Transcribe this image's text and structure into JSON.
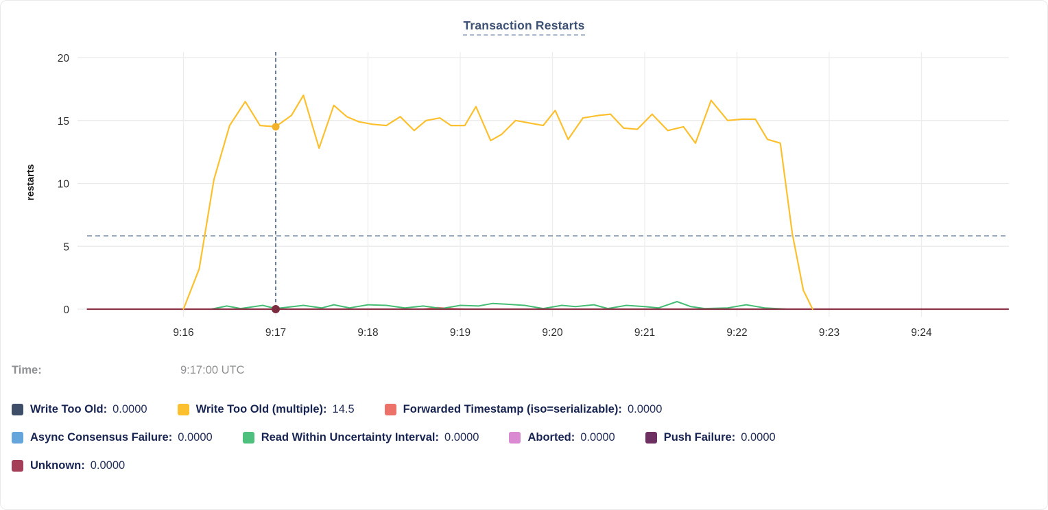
{
  "title": {
    "text": "Transaction Restarts"
  },
  "tooltip": {
    "time_label": "Time:",
    "time_value": "9:17:00 UTC"
  },
  "legend": {
    "rows": [
      [
        {
          "label": "Write Too Old:",
          "value": "0.0000",
          "color": "#3f4e68"
        },
        {
          "label": "Write Too Old (multiple):",
          "value": "14.5",
          "color": "#fcc02e"
        },
        {
          "label": "Forwarded Timestamp (iso=serializable):",
          "value": "0.0000",
          "color": "#ec7168"
        }
      ],
      [
        {
          "label": "Async Consensus Failure:",
          "value": "0.0000",
          "color": "#64a5dc"
        },
        {
          "label": "Read Within Uncertainty Interval:",
          "value": "0.0000",
          "color": "#4ec07d"
        },
        {
          "label": "Aborted:",
          "value": "0.0000",
          "color": "#d98ad1"
        },
        {
          "label": "Push Failure:",
          "value": "0.0000",
          "color": "#6e3060"
        }
      ],
      [
        {
          "label": "Unknown:",
          "value": "0.0000",
          "color": "#a43d57"
        }
      ]
    ]
  },
  "chart_data": {
    "type": "line",
    "title": "Transaction Restarts",
    "xlabel": "",
    "ylabel": "restarts",
    "ylim": [
      0,
      20
    ],
    "yticks": [
      0,
      5,
      10,
      15,
      20
    ],
    "xticks": [
      {
        "t": 16,
        "label": "9:16"
      },
      {
        "t": 17,
        "label": "9:17"
      },
      {
        "t": 18,
        "label": "9:18"
      },
      {
        "t": 19,
        "label": "9:19"
      },
      {
        "t": 20,
        "label": "9:20"
      },
      {
        "t": 21,
        "label": "9:21"
      },
      {
        "t": 22,
        "label": "9:22"
      },
      {
        "t": 23,
        "label": "9:23"
      },
      {
        "t": 24,
        "label": "9:24"
      }
    ],
    "x_domain_minutes_after_9": [
      14.96,
      24.94
    ],
    "grid": true,
    "legend_position": "bottom",
    "threshold_dashed_line_value": 5.83,
    "crosshair": {
      "t": 17,
      "time": "9:17:00 UTC",
      "dots": [
        {
          "series": "Write Too Old (multiple)",
          "value": 14.5,
          "color": "#f2b32a",
          "r": 5.5
        },
        {
          "series": "Unknown",
          "value": 0,
          "color": "#7d2c40",
          "r": 6
        }
      ]
    },
    "series": [
      {
        "name": "Write Too Old",
        "color": "#3f4e68",
        "width": 2,
        "points": [
          [
            14.96,
            0
          ],
          [
            24.94,
            0
          ]
        ]
      },
      {
        "name": "Async Consensus Failure",
        "color": "#64a5dc",
        "width": 2,
        "points": [
          [
            14.96,
            0
          ],
          [
            24.94,
            0
          ]
        ]
      },
      {
        "name": "Aborted",
        "color": "#d98ad1",
        "width": 2,
        "points": [
          [
            14.96,
            0
          ],
          [
            24.94,
            0
          ]
        ]
      },
      {
        "name": "Push Failure",
        "color": "#6e3060",
        "width": 2,
        "points": [
          [
            14.96,
            0
          ],
          [
            24.94,
            0
          ]
        ]
      },
      {
        "name": "Forwarded Timestamp (iso=serializable)",
        "color": "#ec7168",
        "width": 2,
        "points": [
          [
            14.96,
            0
          ],
          [
            18.6,
            0
          ],
          [
            18.75,
            0.12
          ],
          [
            18.9,
            0.05
          ],
          [
            19.05,
            0
          ],
          [
            24.94,
            0
          ]
        ]
      },
      {
        "name": "Read Within Uncertainty Interval",
        "color": "#4ec07d",
        "line_color": "#45bd75",
        "width": 2,
        "points": [
          [
            16.3,
            0
          ],
          [
            16.47,
            0.25
          ],
          [
            16.62,
            0.05
          ],
          [
            16.86,
            0.3
          ],
          [
            17.0,
            0.05
          ],
          [
            17.3,
            0.3
          ],
          [
            17.5,
            0.1
          ],
          [
            17.63,
            0.35
          ],
          [
            17.8,
            0.1
          ],
          [
            18.0,
            0.35
          ],
          [
            18.2,
            0.3
          ],
          [
            18.4,
            0.1
          ],
          [
            18.6,
            0.25
          ],
          [
            18.8,
            0.05
          ],
          [
            19.0,
            0.3
          ],
          [
            19.2,
            0.25
          ],
          [
            19.35,
            0.45
          ],
          [
            19.5,
            0.4
          ],
          [
            19.7,
            0.3
          ],
          [
            19.9,
            0.05
          ],
          [
            20.1,
            0.3
          ],
          [
            20.25,
            0.2
          ],
          [
            20.45,
            0.35
          ],
          [
            20.6,
            0.05
          ],
          [
            20.8,
            0.3
          ],
          [
            21.0,
            0.2
          ],
          [
            21.15,
            0.1
          ],
          [
            21.35,
            0.6
          ],
          [
            21.5,
            0.2
          ],
          [
            21.65,
            0.05
          ],
          [
            21.9,
            0.1
          ],
          [
            22.1,
            0.35
          ],
          [
            22.3,
            0.1
          ],
          [
            22.55,
            0
          ]
        ]
      },
      {
        "name": "Unknown",
        "color": "#a43d57",
        "line_color": "#8d3147",
        "width": 2.2,
        "points": [
          [
            14.96,
            0
          ],
          [
            24.94,
            0
          ]
        ]
      },
      {
        "name": "Write Too Old (multiple)",
        "color": "#fcc02e",
        "width": 2.2,
        "points": [
          [
            16.0,
            0
          ],
          [
            16.17,
            3.2
          ],
          [
            16.33,
            10.3
          ],
          [
            16.5,
            14.6
          ],
          [
            16.67,
            16.5
          ],
          [
            16.83,
            14.6
          ],
          [
            17.0,
            14.5
          ],
          [
            17.17,
            15.4
          ],
          [
            17.3,
            17.0
          ],
          [
            17.47,
            12.8
          ],
          [
            17.63,
            16.2
          ],
          [
            17.77,
            15.3
          ],
          [
            17.9,
            14.9
          ],
          [
            18.05,
            14.7
          ],
          [
            18.2,
            14.6
          ],
          [
            18.35,
            15.3
          ],
          [
            18.5,
            14.2
          ],
          [
            18.63,
            15.0
          ],
          [
            18.78,
            15.2
          ],
          [
            18.9,
            14.6
          ],
          [
            19.05,
            14.6
          ],
          [
            19.17,
            16.1
          ],
          [
            19.33,
            13.4
          ],
          [
            19.45,
            13.9
          ],
          [
            19.6,
            15.0
          ],
          [
            19.75,
            14.8
          ],
          [
            19.9,
            14.6
          ],
          [
            20.03,
            15.8
          ],
          [
            20.17,
            13.5
          ],
          [
            20.33,
            15.2
          ],
          [
            20.5,
            15.4
          ],
          [
            20.63,
            15.5
          ],
          [
            20.77,
            14.4
          ],
          [
            20.92,
            14.3
          ],
          [
            21.08,
            15.5
          ],
          [
            21.25,
            14.2
          ],
          [
            21.42,
            14.5
          ],
          [
            21.55,
            13.2
          ],
          [
            21.72,
            16.6
          ],
          [
            21.9,
            15.0
          ],
          [
            22.05,
            15.1
          ],
          [
            22.2,
            15.1
          ],
          [
            22.33,
            13.5
          ],
          [
            22.47,
            13.2
          ],
          [
            22.6,
            6.0
          ],
          [
            22.72,
            1.5
          ],
          [
            22.82,
            0
          ]
        ]
      }
    ]
  }
}
